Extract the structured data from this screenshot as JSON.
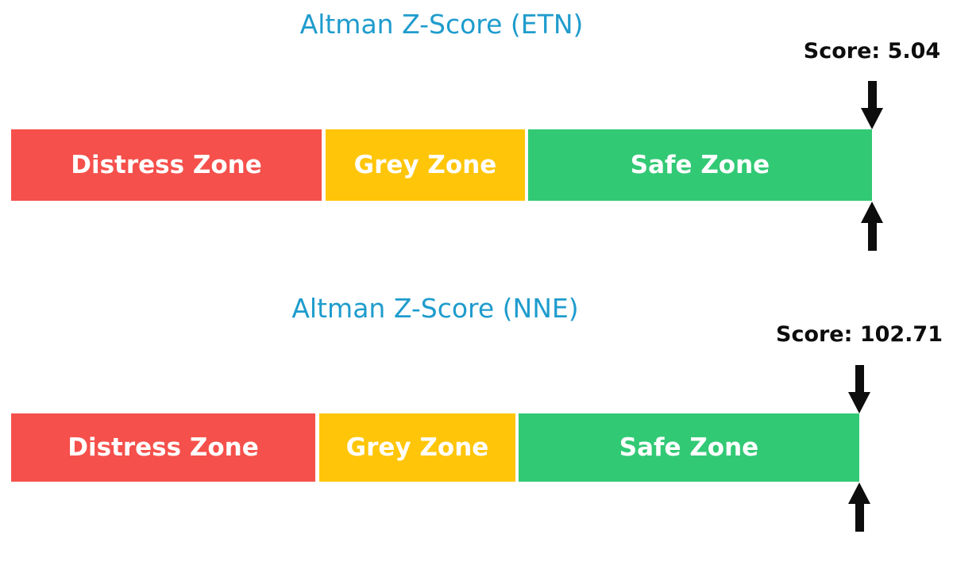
{
  "colors": {
    "distress-zone": "#f5504b",
    "grey-zone": "#ffc509",
    "safe-zone": "#32c975",
    "title-text": "#1f9ccd",
    "ink": "#0d0d0d",
    "zone-label-text": "#ffffff",
    "background": "#ffffff"
  },
  "charts": [
    {
      "title": "Altman Z-Score (ETN)",
      "score_label": "Score: 5.04",
      "zones": [
        {
          "label": "Distress Zone"
        },
        {
          "label": "Grey Zone"
        },
        {
          "label": "Safe Zone"
        }
      ]
    },
    {
      "title": "Altman Z-Score (NNE)",
      "score_label": "Score: 102.71",
      "zones": [
        {
          "label": "Distress Zone"
        },
        {
          "label": "Grey Zone"
        },
        {
          "label": "Safe Zone"
        }
      ]
    }
  ],
  "chart_data": [
    {
      "type": "bar",
      "title": "Altman Z-Score (ETN)",
      "ticker": "ETN",
      "score": 5.04,
      "score_label": "Score: 5.04",
      "segments": [
        {
          "label": "Distress Zone",
          "color": "#f5504b",
          "width_fraction": 0.36
        },
        {
          "label": "Grey Zone",
          "color": "#ffc509",
          "width_fraction": 0.23
        },
        {
          "label": "Safe Zone",
          "color": "#32c975",
          "width_fraction": 0.41
        }
      ],
      "marker": {
        "style": "down-and-up-black-arrows",
        "position_fraction": 1.0,
        "points_at": "right end of Safe Zone"
      },
      "legend": "none",
      "axes": "none"
    },
    {
      "type": "bar",
      "title": "Altman Z-Score (NNE)",
      "ticker": "NNE",
      "score": 102.71,
      "score_label": "Score: 102.71",
      "segments": [
        {
          "label": "Distress Zone",
          "color": "#f5504b",
          "width_fraction": 0.36
        },
        {
          "label": "Grey Zone",
          "color": "#ffc509",
          "width_fraction": 0.23
        },
        {
          "label": "Safe Zone",
          "color": "#32c975",
          "width_fraction": 0.41
        }
      ],
      "marker": {
        "style": "down-and-up-black-arrows",
        "position_fraction": 1.0,
        "points_at": "right end of Safe Zone"
      },
      "legend": "none",
      "axes": "none"
    }
  ]
}
